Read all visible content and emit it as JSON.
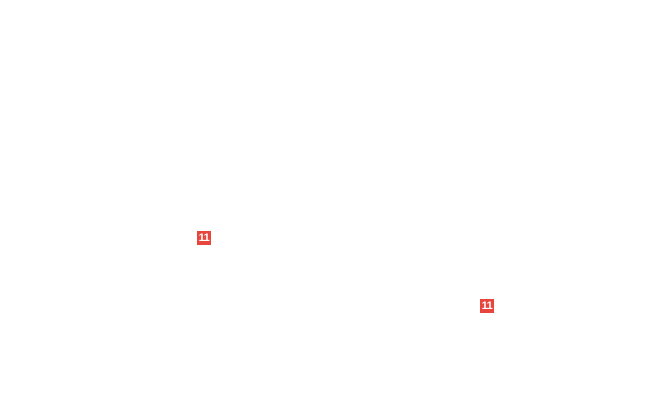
{
  "badges": [
    {
      "label": "11",
      "color": "#e8453c"
    },
    {
      "label": "11",
      "color": "#e8453c"
    }
  ]
}
